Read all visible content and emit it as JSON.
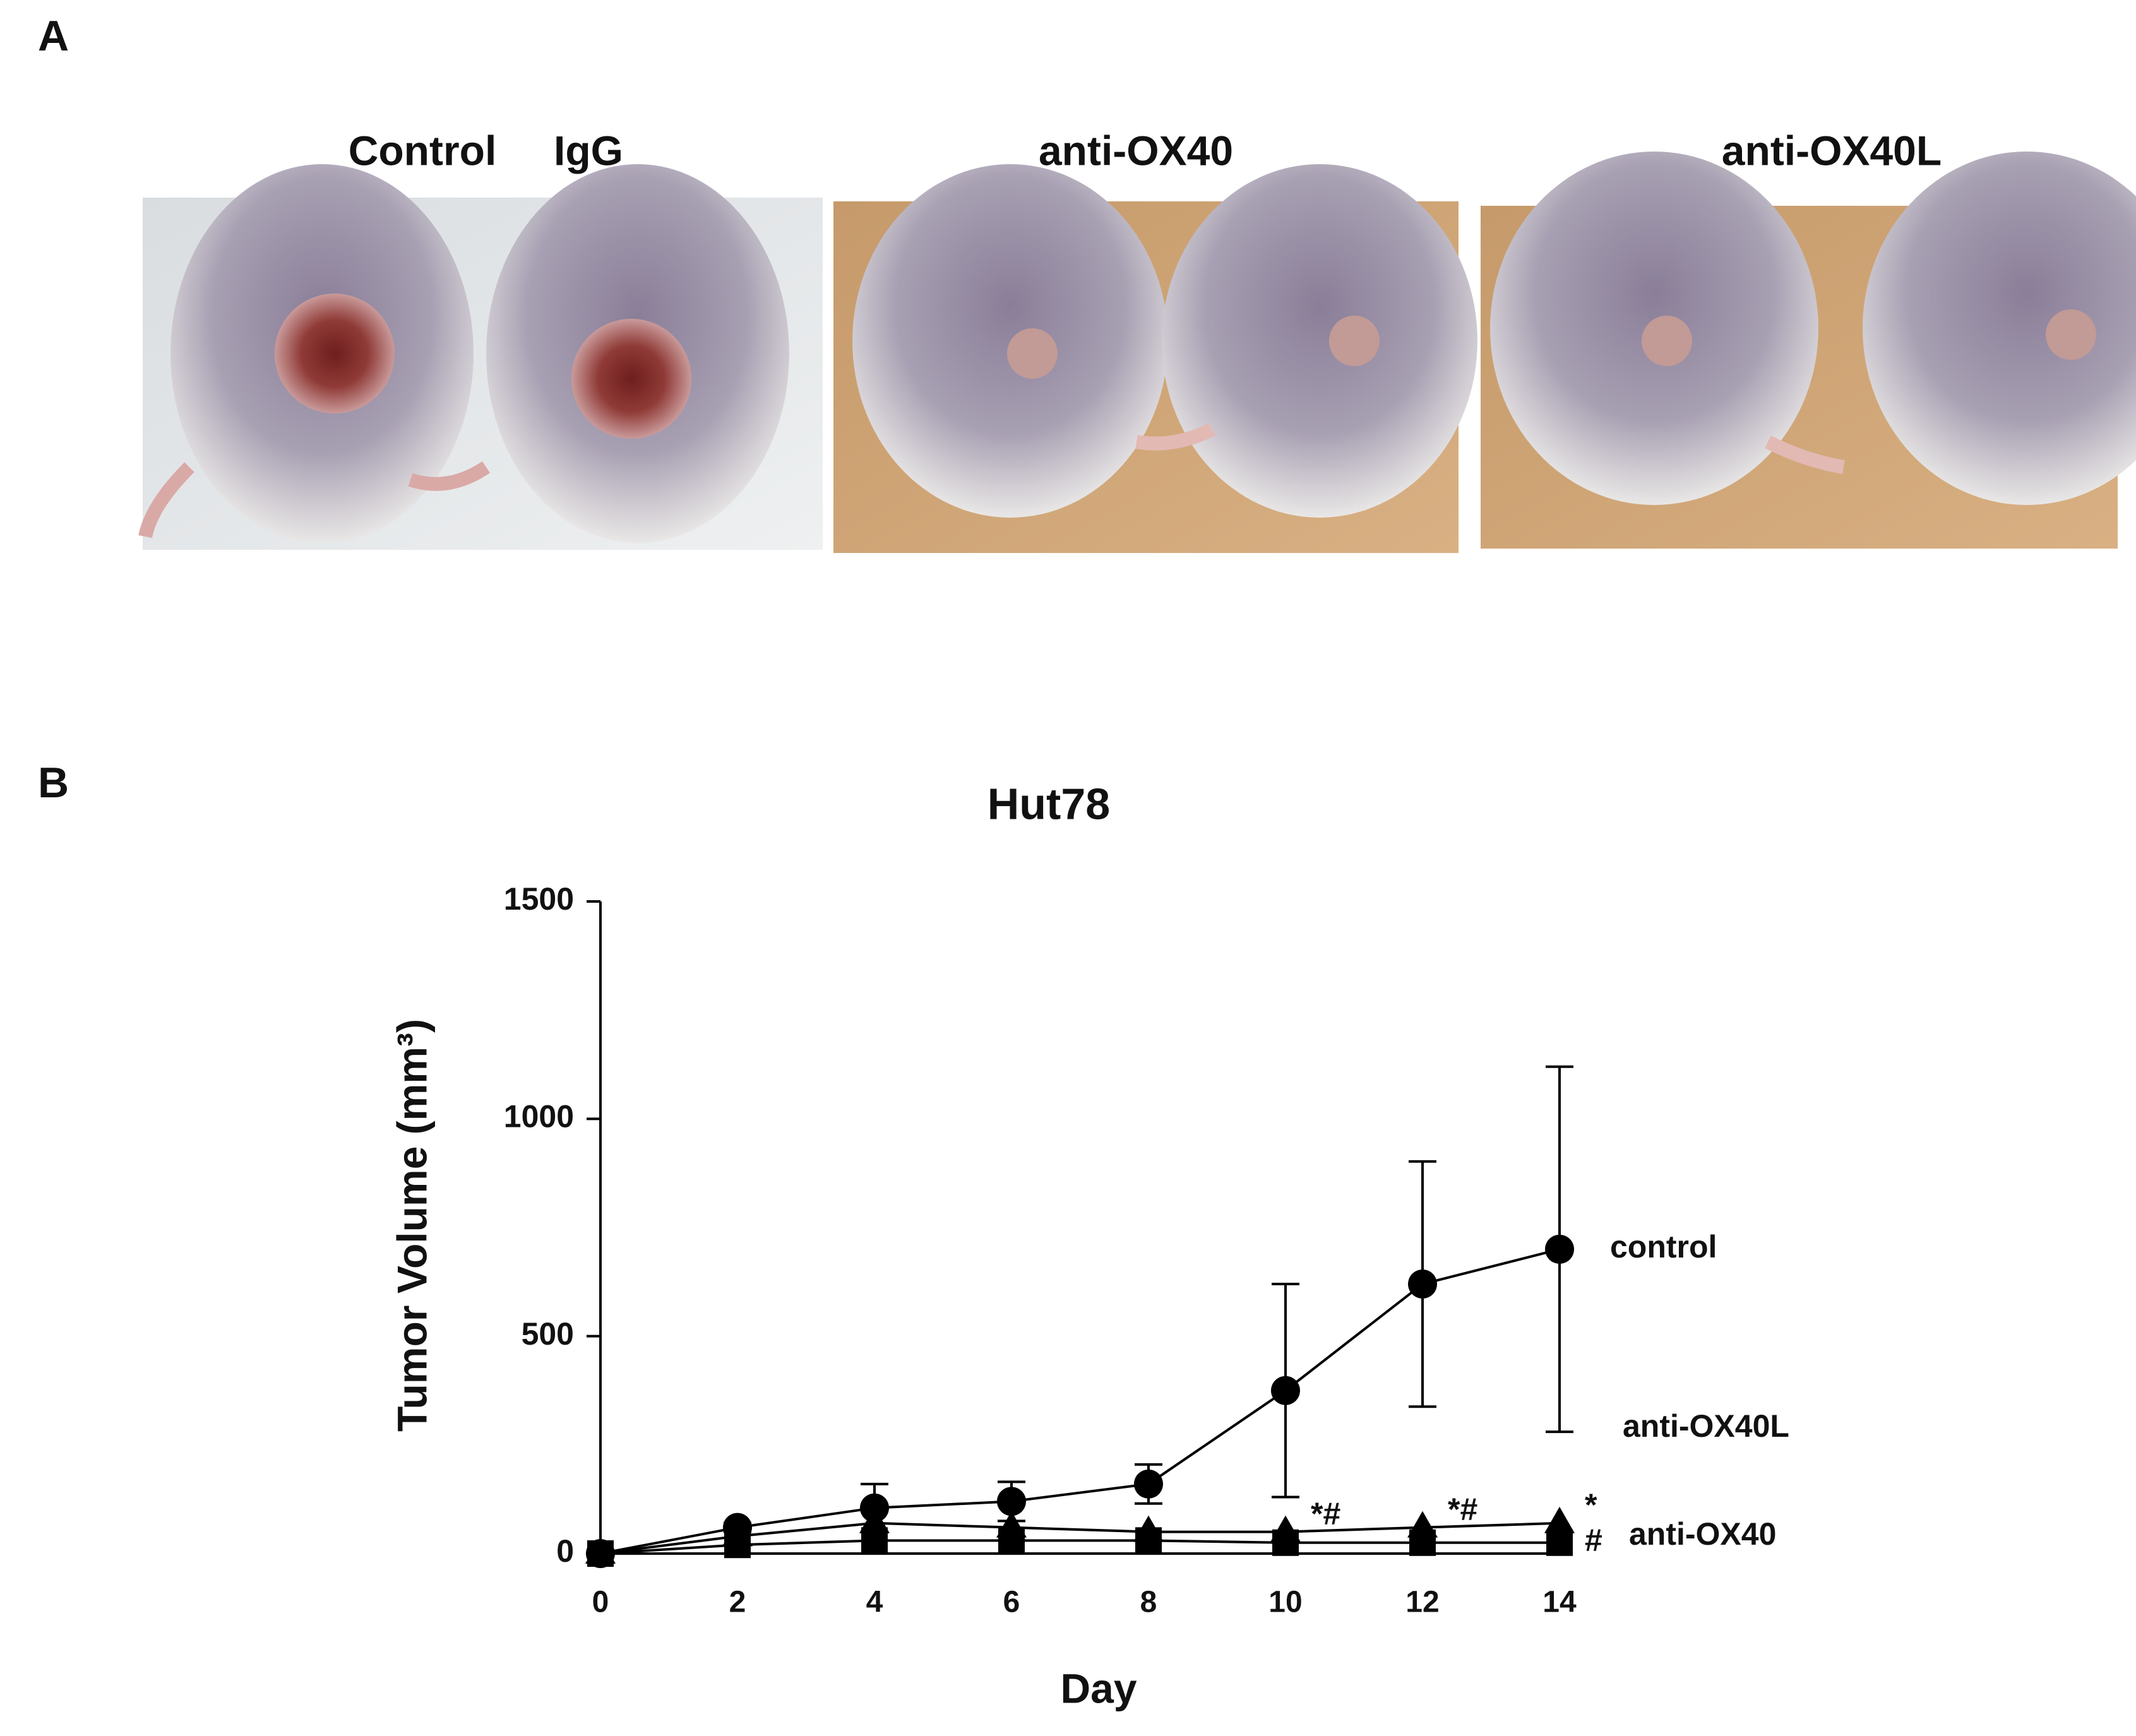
{
  "panel_labels": [
    "A",
    "B"
  ],
  "photo_labels": [
    "Control",
    "IgG",
    "anti-OX40",
    "anti-OX40L"
  ],
  "chart_data": {
    "type": "line",
    "title": "Hut78",
    "x_label": "Day",
    "y_label": "Tumor Volume (mm³)",
    "x": [
      0,
      2,
      4,
      6,
      8,
      10,
      12,
      14
    ],
    "series": [
      {
        "name": "control",
        "color": "#000000",
        "marker": "circle",
        "values": [
          0,
          60,
          105,
          120,
          160,
          375,
          620,
          700
        ],
        "errors": [
          0,
          10,
          55,
          45,
          45,
          245,
          282,
          420
        ]
      },
      {
        "name": "anti-OX40L",
        "color": "#000000",
        "marker": "triangle",
        "values": [
          0,
          40,
          70,
          60,
          50,
          50,
          60,
          70
        ]
      },
      {
        "name": "anti-OX40",
        "color": "#000000",
        "marker": "square",
        "values": [
          0,
          20,
          30,
          30,
          30,
          25,
          25,
          25
        ]
      }
    ],
    "annotations": [
      {
        "text": "*#",
        "x": 10
      },
      {
        "text": "*#",
        "x": 12
      },
      {
        "text": "*",
        "x": 14
      },
      {
        "text": "#",
        "x": 14
      }
    ],
    "xlim": [
      0,
      14
    ],
    "xticks": [
      0,
      2,
      4,
      6,
      8,
      10,
      12,
      14
    ],
    "ylim": [
      0,
      1500
    ],
    "yticks": [
      0,
      500,
      1000,
      1500
    ]
  }
}
